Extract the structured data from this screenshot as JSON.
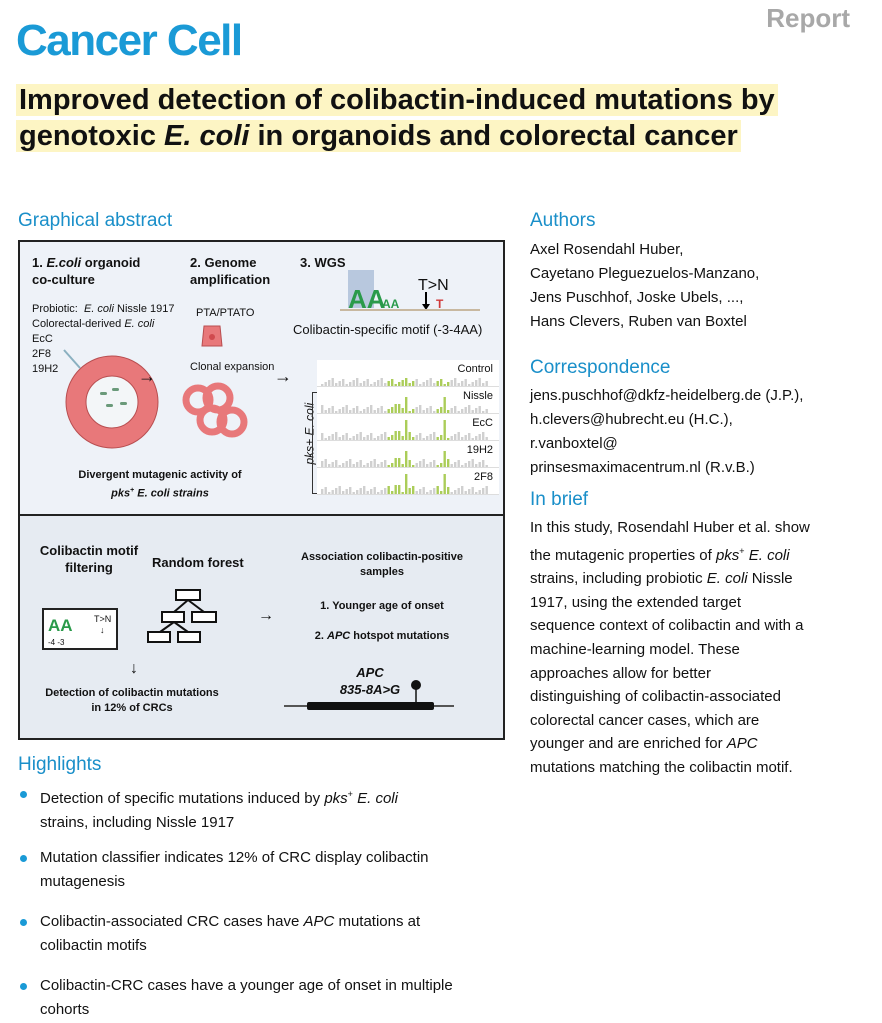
{
  "header": {
    "article_type": "Report",
    "journal": "Cancer Cell",
    "title_parts": [
      "Improved detection of colibactin-induced mutations by genotoxic ",
      "E. coli",
      " in organoids and colorectal cancer"
    ]
  },
  "graphical_abstract": {
    "heading": "Graphical abstract",
    "step1": {
      "num": "1. ",
      "italic": "E.coli",
      "rest": " organoid",
      "line2": "co-culture"
    },
    "step2": {
      "line1": "2. Genome",
      "line2": "amplification"
    },
    "step3": "3. WGS",
    "strains": {
      "probiotic_label": "Probiotic:",
      "probiotic_italic": "E. coli",
      "probiotic_rest": " Nissle 1917",
      "crc_label": "Colorectal-derived ",
      "crc_italic": "E. coli",
      "list": [
        "EcC",
        "2F8",
        "19H2"
      ]
    },
    "pta": "PTA/PTATO",
    "clonal": "Clonal expansion",
    "motif_change": "T>N",
    "motif_caption": "Colibactin-specific motif (-3-4AA)",
    "profiles": [
      "Control",
      "Nissle",
      "EcC",
      "19H2",
      "2F8"
    ],
    "profiles_axis": "pks+ E. coli",
    "divergent": {
      "line1": "Divergent mutagenic activity of",
      "italic": "pks",
      "sup": "+",
      "rest": " E. coli strains"
    },
    "motif_filter": {
      "line1": "Colibactin motif",
      "line2": "filtering",
      "change": "T>N",
      "positions": "-4 -3"
    },
    "random_forest": "Random forest",
    "detection": {
      "line1": "Detection of colibactin mutations",
      "line2": "in 12% of CRCs"
    },
    "association": {
      "line1": "Association colibactin-positive",
      "line2": "samples",
      "item1": "1. Younger age of onset",
      "item2_num": "2. ",
      "item2_italic": "APC",
      "item2_rest": " hotspot mutations"
    },
    "gene": {
      "name": "APC",
      "mutation": "835-8A>G"
    }
  },
  "highlights": {
    "heading": "Highlights",
    "items": [
      {
        "a": "Detection of specific mutations induced by ",
        "i": "pks",
        "sup": "+",
        "b": " E. coli",
        "c": "strains, including Nissle 1917"
      },
      {
        "a": "Mutation classifier indicates 12% of CRC display colibactin",
        "c": "mutagenesis"
      },
      {
        "a": "Colibactin-associated CRC cases have ",
        "i": "APC",
        "b": " mutations at",
        "c": "colibactin motifs"
      },
      {
        "a": "Colibactin-CRC cases have a younger age of onset in multiple",
        "c": "cohorts"
      }
    ]
  },
  "authors": {
    "heading": "Authors",
    "lines": [
      "Axel Rosendahl Huber,",
      "Cayetano Pleguezuelos-Manzano,",
      "Jens Puschhof, Joske Ubels, ...,",
      "Hans Clevers, Ruben van Boxtel"
    ]
  },
  "correspondence": {
    "heading": "Correspondence",
    "lines": [
      "jens.puschhof@dkfz-heidelberg.de (J.P.),",
      "h.clevers@hubrecht.eu (H.C.),",
      "r.vanboxtel@",
      "prinsesmaximacentrum.nl (R.v.B.)"
    ]
  },
  "in_brief": {
    "heading": "In brief",
    "lines": [
      [
        "In this study, Rosendahl Huber et al. show"
      ],
      [
        "the mutagenic properties of ",
        {
          "i": "pks"
        },
        {
          "sup": "+"
        },
        {
          "i": " E. coli"
        }
      ],
      [
        "strains, including probiotic ",
        {
          "i": "E. coli"
        },
        " Nissle"
      ],
      [
        "1917, using the extended target"
      ],
      [
        "sequence context of colibactin and with a"
      ],
      [
        "machine-learning model. These"
      ],
      [
        "approaches allow for better"
      ],
      [
        "distinguishing of colibactin-associated"
      ],
      [
        "colorectal cancer cases, which are"
      ],
      [
        "younger and are enriched for ",
        {
          "i": "APC"
        }
      ],
      [
        "mutations matching the colibactin motif."
      ]
    ]
  },
  "colors": {
    "accent": "#1a9ad6",
    "title_highlight": "#fdf5c4",
    "organoid": "#e8787a",
    "bar_green": "#9cc43c"
  }
}
